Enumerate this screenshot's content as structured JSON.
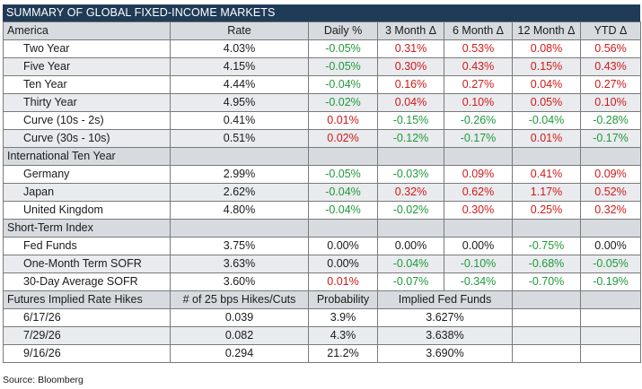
{
  "title": "SUMMARY OF GLOBAL FIXED-INCOME MARKETS",
  "header": [
    "America",
    "Rate",
    "Daily %",
    "3 Month Δ",
    "6 Month Δ",
    "12 Month Δ",
    "YTD Δ"
  ],
  "america": [
    {
      "label": "Two Year",
      "rate": "4.03%",
      "daily": "-0.05%",
      "m3": "0.31%",
      "m6": "0.53%",
      "m12": "0.08%",
      "ytd": "0.56%",
      "c": [
        "neg",
        "pos",
        "pos",
        "pos",
        "pos"
      ]
    },
    {
      "label": "Five Year",
      "rate": "4.15%",
      "daily": "-0.05%",
      "m3": "0.30%",
      "m6": "0.43%",
      "m12": "0.15%",
      "ytd": "0.43%",
      "c": [
        "neg",
        "pos",
        "pos",
        "pos",
        "pos"
      ]
    },
    {
      "label": "Ten Year",
      "rate": "4.44%",
      "daily": "-0.04%",
      "m3": "0.16%",
      "m6": "0.27%",
      "m12": "0.04%",
      "ytd": "0.27%",
      "c": [
        "neg",
        "pos",
        "pos",
        "pos",
        "pos"
      ]
    },
    {
      "label": "Thirty Year",
      "rate": "4.95%",
      "daily": "-0.02%",
      "m3": "0.04%",
      "m6": "0.10%",
      "m12": "0.05%",
      "ytd": "0.10%",
      "c": [
        "neg",
        "pos",
        "pos",
        "pos",
        "pos"
      ]
    },
    {
      "label": "Curve (10s - 2s)",
      "rate": "0.41%",
      "daily": "0.01%",
      "m3": "-0.15%",
      "m6": "-0.26%",
      "m12": "-0.04%",
      "ytd": "-0.28%",
      "c": [
        "pos",
        "neg",
        "neg",
        "neg",
        "neg"
      ]
    },
    {
      "label": "Curve (30s - 10s)",
      "rate": "0.51%",
      "daily": "0.02%",
      "m3": "-0.12%",
      "m6": "-0.17%",
      "m12": "0.01%",
      "ytd": "-0.17%",
      "c": [
        "pos",
        "neg",
        "neg",
        "pos",
        "neg"
      ]
    }
  ],
  "international_label": "International Ten Year",
  "international": [
    {
      "label": "Germany",
      "rate": "2.99%",
      "daily": "-0.05%",
      "m3": "-0.03%",
      "m6": "0.09%",
      "m12": "0.41%",
      "ytd": "0.09%",
      "c": [
        "neg",
        "neg",
        "pos",
        "pos",
        "pos"
      ]
    },
    {
      "label": "Japan",
      "rate": "2.62%",
      "daily": "-0.04%",
      "m3": "0.32%",
      "m6": "0.62%",
      "m12": "1.17%",
      "ytd": "0.52%",
      "c": [
        "neg",
        "pos",
        "pos",
        "pos",
        "pos"
      ]
    },
    {
      "label": "United Kingdom",
      "rate": "4.80%",
      "daily": "-0.04%",
      "m3": "-0.02%",
      "m6": "0.30%",
      "m12": "0.25%",
      "ytd": "0.32%",
      "c": [
        "neg",
        "neg",
        "pos",
        "pos",
        "pos"
      ]
    }
  ],
  "short_term_label": "Short-Term Index",
  "short_term": [
    {
      "label": "Fed Funds",
      "rate": "3.75%",
      "daily": "0.00%",
      "m3": "0.00%",
      "m6": "0.00%",
      "m12": "-0.75%",
      "ytd": "0.00%",
      "c": [
        "neu",
        "neu",
        "neu",
        "neg",
        "neu"
      ]
    },
    {
      "label": "One-Month Term SOFR",
      "rate": "3.63%",
      "daily": "0.00%",
      "m3": "-0.04%",
      "m6": "-0.10%",
      "m12": "-0.68%",
      "ytd": "-0.05%",
      "c": [
        "neu",
        "neg",
        "neg",
        "neg",
        "neg"
      ]
    },
    {
      "label": "30-Day Average SOFR",
      "rate": "3.60%",
      "daily": "0.01%",
      "m3": "-0.07%",
      "m6": "-0.34%",
      "m12": "-0.70%",
      "ytd": "-0.19%",
      "c": [
        "pos",
        "neg",
        "neg",
        "neg",
        "neg"
      ]
    }
  ],
  "futures_header": [
    "Futures Implied Rate Hikes",
    "# of 25 bps Hikes/Cuts",
    "Probability",
    "Implied Fed Funds"
  ],
  "futures": [
    {
      "date": "6/17/26",
      "hikes": "0.039",
      "prob": "3.9%",
      "implied": "3.627%"
    },
    {
      "date": "7/29/26",
      "hikes": "0.082",
      "prob": "4.3%",
      "implied": "3.638%"
    },
    {
      "date": "9/16/26",
      "hikes": "0.294",
      "prob": "21.2%",
      "implied": "3.690%"
    }
  ],
  "source": "Source: Bloomberg",
  "colors": {
    "header_bg": "#1f3b57",
    "section_bg": "#d7dbe0",
    "row_shade": "#e9ebee",
    "positive": "#d11919",
    "negative": "#1f9a3a"
  }
}
